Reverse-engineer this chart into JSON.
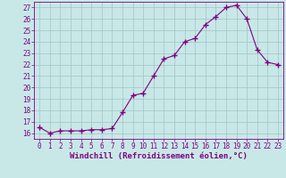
{
  "x": [
    0,
    1,
    2,
    3,
    4,
    5,
    6,
    7,
    8,
    9,
    10,
    11,
    12,
    13,
    14,
    15,
    16,
    17,
    18,
    19,
    20,
    21,
    22,
    23
  ],
  "y": [
    16.5,
    16.0,
    16.2,
    16.2,
    16.2,
    16.3,
    16.3,
    16.4,
    17.8,
    19.3,
    19.5,
    21.0,
    22.5,
    22.8,
    24.0,
    24.3,
    25.5,
    26.2,
    27.0,
    27.2,
    26.0,
    23.3,
    22.2,
    22.0
  ],
  "line_color": "#800080",
  "marker": "+",
  "marker_size": 4,
  "marker_lw": 1.0,
  "bg_color": "#c8e8e8",
  "grid_color": "#a0c4c4",
  "xlabel": "Windchill (Refroidissement éolien,°C)",
  "ylim": [
    15.5,
    27.5
  ],
  "xlim": [
    -0.5,
    23.5
  ],
  "yticks": [
    16,
    17,
    18,
    19,
    20,
    21,
    22,
    23,
    24,
    25,
    26,
    27
  ],
  "xticks": [
    0,
    1,
    2,
    3,
    4,
    5,
    6,
    7,
    8,
    9,
    10,
    11,
    12,
    13,
    14,
    15,
    16,
    17,
    18,
    19,
    20,
    21,
    22,
    23
  ],
  "axis_color": "#800080",
  "tick_color": "#800080",
  "label_fontsize": 6.5,
  "tick_fontsize": 5.5,
  "linewidth": 0.8
}
